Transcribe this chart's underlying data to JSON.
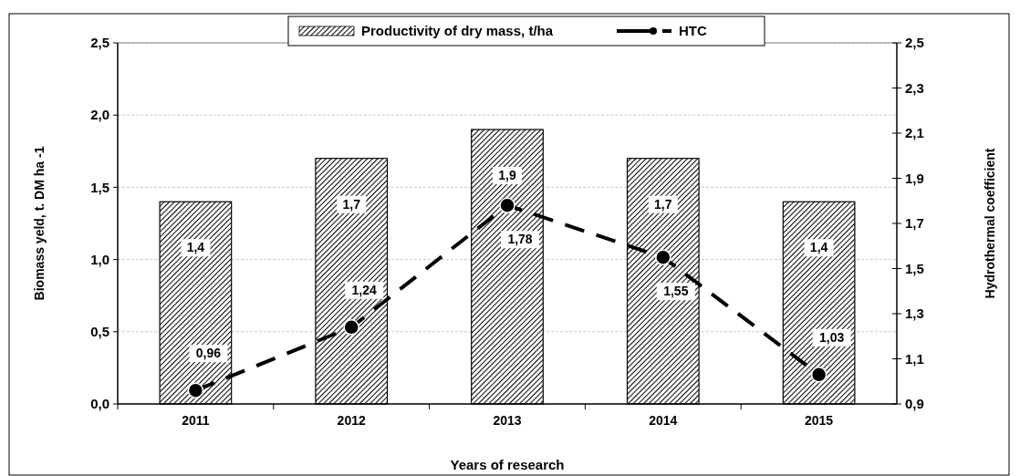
{
  "chart_data": {
    "type": "bar",
    "xlabel": "Years of research",
    "ylabel": "Biomass yeld, t. DM ha -1",
    "y2label": "Hydrothermal coefficient",
    "categories": [
      "2011",
      "2012",
      "2013",
      "2014",
      "2015"
    ],
    "series": [
      {
        "name": "Productivity of dry mass, t/ha",
        "color": "#000000",
        "values": [
          1.4,
          1.7,
          1.9,
          1.7,
          1.4
        ],
        "value_labels": [
          "1,4",
          "1,7",
          "1,9",
          "1,7",
          "1,4"
        ]
      },
      {
        "name": "HTC",
        "type": "line",
        "axis": "y2",
        "color": "#000000",
        "marker": "circle",
        "line_style": "dashed",
        "values": [
          0.96,
          1.24,
          1.78,
          1.55,
          1.03
        ],
        "value_labels": [
          "0,96",
          "1,24",
          "1,78",
          "1,55",
          "1,03"
        ]
      }
    ],
    "ylim": [
      0,
      2.5
    ],
    "yticks": [
      {
        "value": 0,
        "label": "0,0"
      },
      {
        "value": 0.5,
        "label": "0,5"
      },
      {
        "value": 1,
        "label": "1,0"
      },
      {
        "value": 1.5,
        "label": "1,5"
      },
      {
        "value": 2,
        "label": "2,0"
      },
      {
        "value": 2.5,
        "label": "2,5"
      }
    ],
    "y2lim": [
      0.9,
      2.5
    ],
    "y2ticks": [
      {
        "value": 0.9,
        "label": "0,9"
      },
      {
        "value": 1.1,
        "label": "1,1"
      },
      {
        "value": 1.3,
        "label": "1,3"
      },
      {
        "value": 1.5,
        "label": "1,5"
      },
      {
        "value": 1.7,
        "label": "1,7"
      },
      {
        "value": 1.9,
        "label": "1,9"
      },
      {
        "value": 2.1,
        "label": "2,1"
      },
      {
        "value": 2.3,
        "label": "2,3"
      },
      {
        "value": 2.5,
        "label": "2,5"
      }
    ],
    "grid": "y",
    "legend": "top"
  }
}
